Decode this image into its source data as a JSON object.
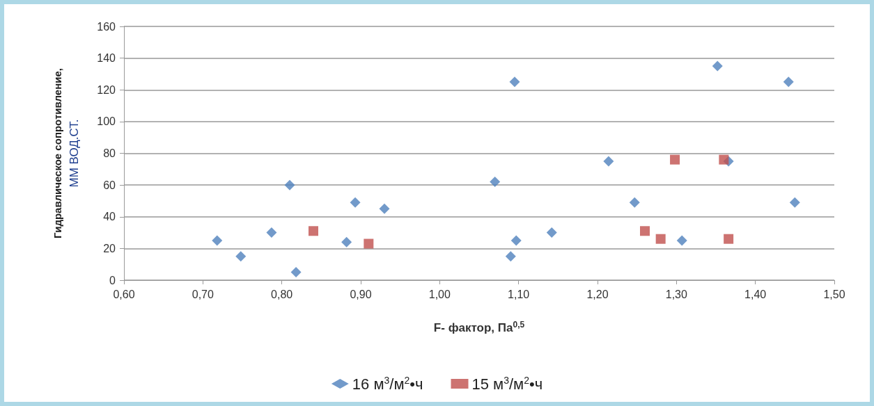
{
  "chart_data": {
    "type": "scatter",
    "xlabel": "F- фактор, Па$^{0,5}$",
    "ylabel": "Гидравлическое сопротивление,\nММ ВОД.СТ.",
    "xlim": [
      0.6,
      1.5
    ],
    "xticks": [
      {
        "value": 0.6,
        "label": "0,60"
      },
      {
        "value": 0.7,
        "label": "0,70"
      },
      {
        "value": 0.8,
        "label": "0,80"
      },
      {
        "value": 0.9,
        "label": "0,90"
      },
      {
        "value": 1.0,
        "label": "1,00"
      },
      {
        "value": 1.1,
        "label": "1,10"
      },
      {
        "value": 1.2,
        "label": "1,20"
      },
      {
        "value": 1.3,
        "label": "1,30"
      },
      {
        "value": 1.4,
        "label": "1,40"
      },
      {
        "value": 1.5,
        "label": "1,50"
      }
    ],
    "ylim": [
      0,
      160
    ],
    "yticks": [
      0,
      20,
      40,
      60,
      80,
      100,
      120,
      140,
      160
    ],
    "grid": "y",
    "legend": "bottom",
    "series": [
      {
        "name": "16 м$^{3}$/м$^{2}$•ч",
        "color": "#4f81bd",
        "marker": "diamond",
        "x": [
          0.718,
          0.748,
          0.787,
          0.81,
          0.818,
          0.882,
          0.893,
          0.93,
          1.07,
          1.09,
          1.095,
          1.097,
          1.142,
          1.214,
          1.247,
          1.307,
          1.352,
          1.366,
          1.442,
          1.45
        ],
        "values": [
          25,
          15,
          30,
          60,
          5,
          24,
          49,
          45,
          62,
          15,
          125,
          25,
          30,
          75,
          49,
          25,
          135,
          75,
          125,
          49
        ]
      },
      {
        "name": "15 м$^{3}$/м$^{2}$•ч",
        "color": "#c0504d",
        "marker": "square",
        "x": [
          0.84,
          0.91,
          1.26,
          1.28,
          1.298,
          1.36,
          1.366
        ],
        "values": [
          31,
          23,
          31,
          26,
          76,
          76,
          26
        ]
      }
    ]
  }
}
